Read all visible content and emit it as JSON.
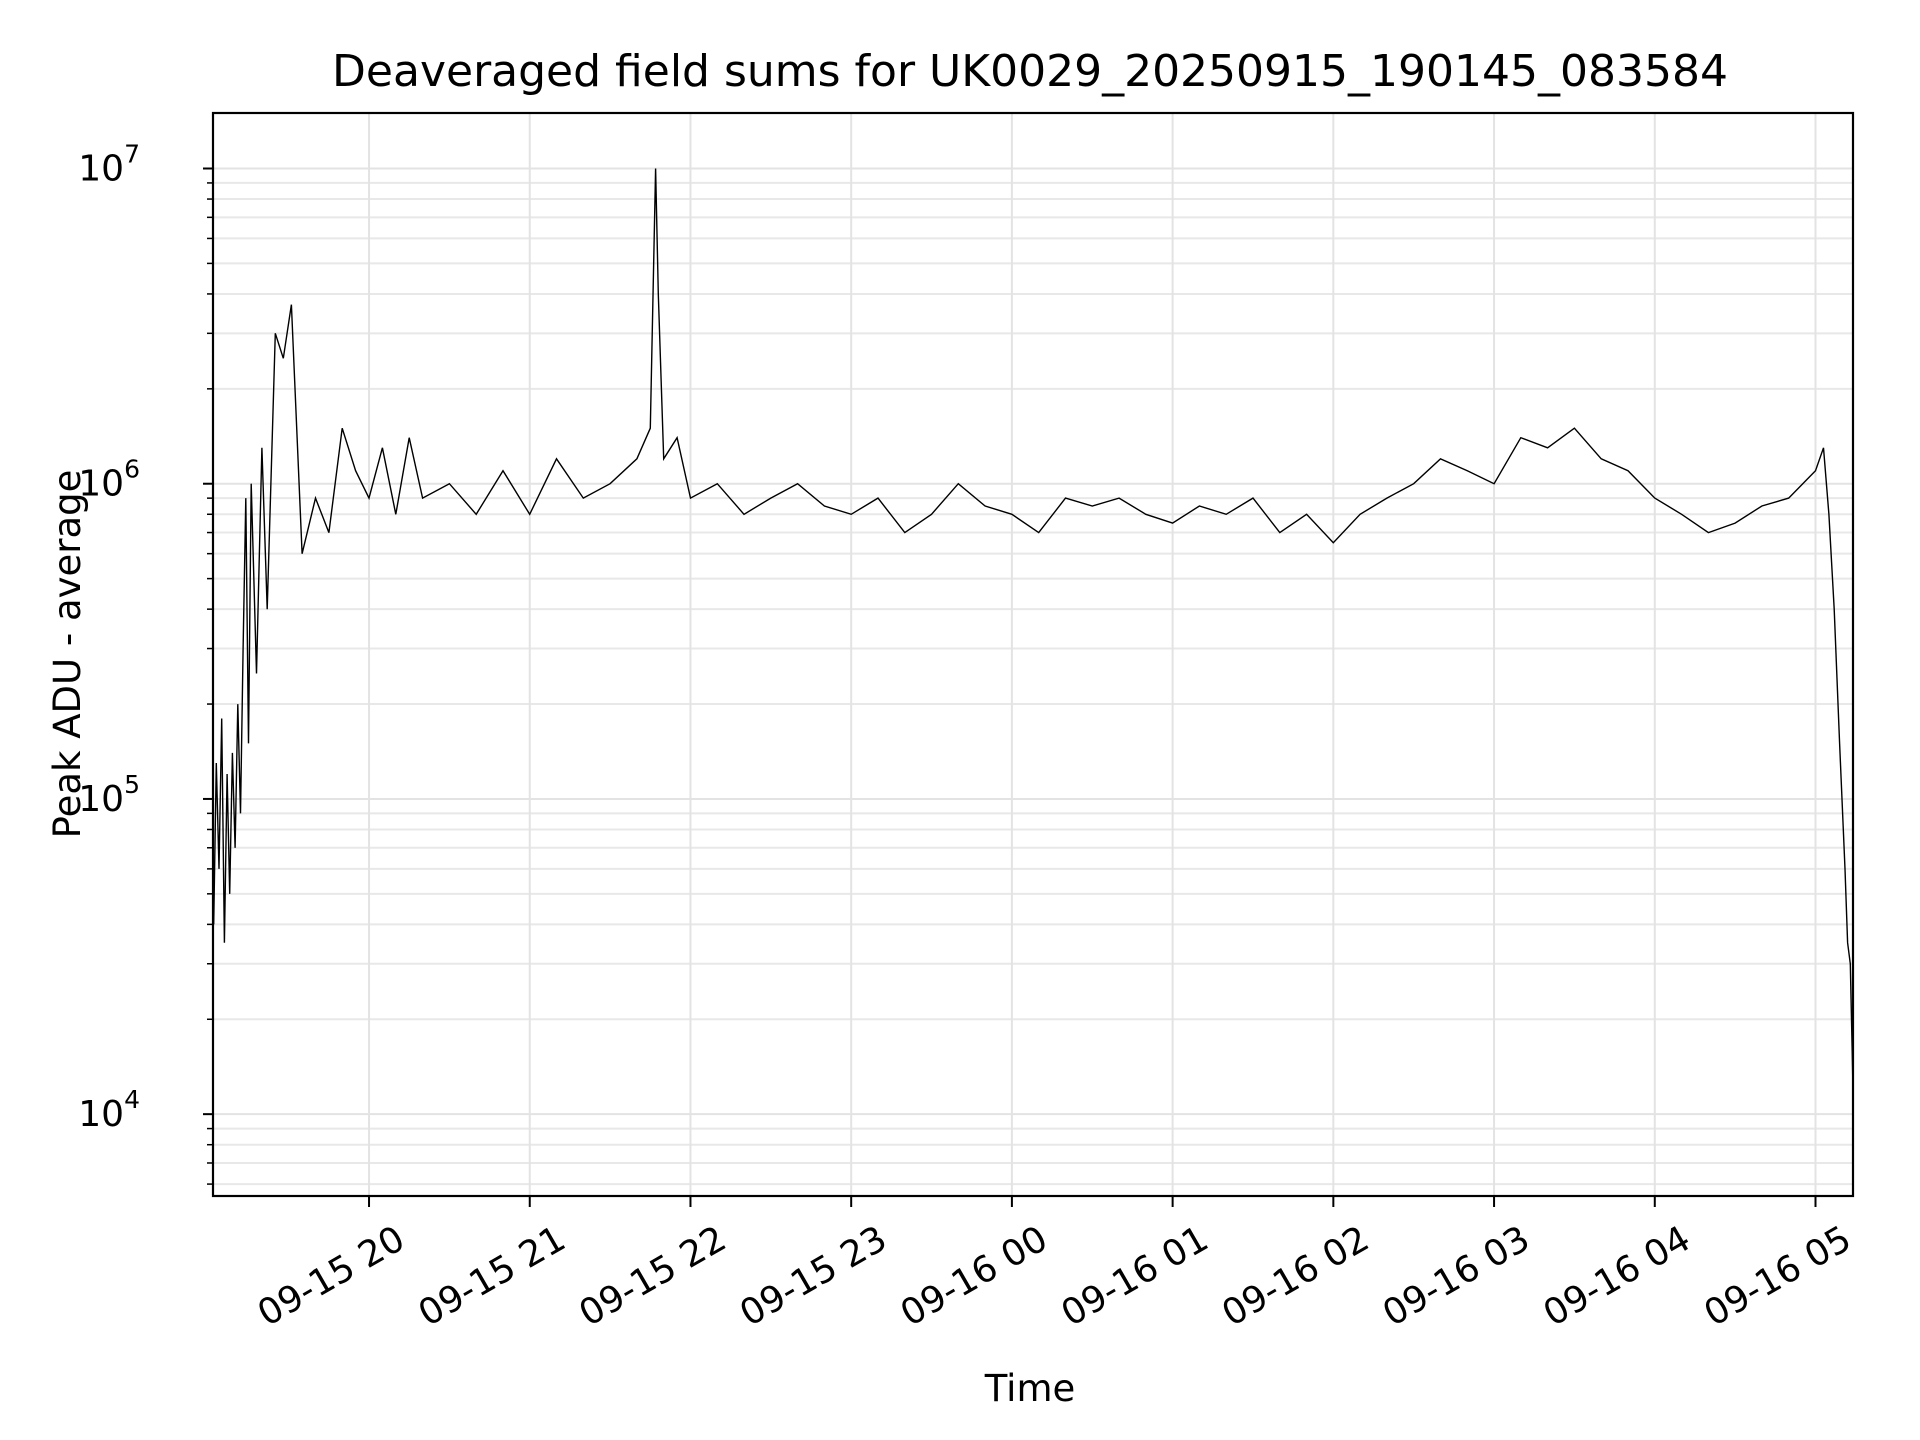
{
  "chart_data": {
    "type": "line",
    "title": "Deaveraged field sums for UK0029_20250915_190145_083584",
    "xlabel": "Time",
    "ylabel": "Peak ADU - average",
    "yscale": "log",
    "ylim": [
      5500,
      15000000
    ],
    "xlim": [
      "2025-09-15 19:01:45",
      "2025-09-16 05:14:00"
    ],
    "grid": true,
    "x_ticks": [
      {
        "value": "2025-09-15 20:00",
        "label": "09-15 20"
      },
      {
        "value": "2025-09-15 21:00",
        "label": "09-15 21"
      },
      {
        "value": "2025-09-15 22:00",
        "label": "09-15 22"
      },
      {
        "value": "2025-09-15 23:00",
        "label": "09-15 23"
      },
      {
        "value": "2025-09-16 00:00",
        "label": "09-16 00"
      },
      {
        "value": "2025-09-16 01:00",
        "label": "09-16 01"
      },
      {
        "value": "2025-09-16 02:00",
        "label": "09-16 02"
      },
      {
        "value": "2025-09-16 03:00",
        "label": "09-16 03"
      },
      {
        "value": "2025-09-16 04:00",
        "label": "09-16 04"
      },
      {
        "value": "2025-09-16 05:00",
        "label": "09-16 05"
      }
    ],
    "y_ticks": [
      {
        "value": 10000,
        "base": "10",
        "exp": "4"
      },
      {
        "value": 100000,
        "base": "10",
        "exp": "5"
      },
      {
        "value": 1000000,
        "base": "10",
        "exp": "6"
      },
      {
        "value": 10000000,
        "base": "10",
        "exp": "7"
      }
    ],
    "series": [
      {
        "color": "#000000",
        "x": [
          "2025-09-15 19:02",
          "2025-09-15 19:03",
          "2025-09-15 19:04",
          "2025-09-15 19:05",
          "2025-09-15 19:06",
          "2025-09-15 19:07",
          "2025-09-15 19:08",
          "2025-09-15 19:09",
          "2025-09-15 19:10",
          "2025-09-15 19:11",
          "2025-09-15 19:12",
          "2025-09-15 19:13",
          "2025-09-15 19:14",
          "2025-09-15 19:15",
          "2025-09-15 19:16",
          "2025-09-15 19:18",
          "2025-09-15 19:20",
          "2025-09-15 19:22",
          "2025-09-15 19:25",
          "2025-09-15 19:28",
          "2025-09-15 19:31",
          "2025-09-15 19:35",
          "2025-09-15 19:40",
          "2025-09-15 19:45",
          "2025-09-15 19:50",
          "2025-09-15 19:55",
          "2025-09-15 20:00",
          "2025-09-15 20:05",
          "2025-09-15 20:10",
          "2025-09-15 20:15",
          "2025-09-15 20:20",
          "2025-09-15 20:30",
          "2025-09-15 20:40",
          "2025-09-15 20:50",
          "2025-09-15 21:00",
          "2025-09-15 21:10",
          "2025-09-15 21:20",
          "2025-09-15 21:30",
          "2025-09-15 21:40",
          "2025-09-15 21:45",
          "2025-09-15 21:47",
          "2025-09-15 21:48",
          "2025-09-15 21:50",
          "2025-09-15 21:55",
          "2025-09-15 22:00",
          "2025-09-15 22:10",
          "2025-09-15 22:20",
          "2025-09-15 22:30",
          "2025-09-15 22:40",
          "2025-09-15 22:50",
          "2025-09-15 23:00",
          "2025-09-15 23:10",
          "2025-09-15 23:20",
          "2025-09-15 23:30",
          "2025-09-15 23:40",
          "2025-09-15 23:50",
          "2025-09-16 00:00",
          "2025-09-16 00:10",
          "2025-09-16 00:20",
          "2025-09-16 00:30",
          "2025-09-16 00:40",
          "2025-09-16 00:50",
          "2025-09-16 01:00",
          "2025-09-16 01:10",
          "2025-09-16 01:20",
          "2025-09-16 01:30",
          "2025-09-16 01:40",
          "2025-09-16 01:50",
          "2025-09-16 02:00",
          "2025-09-16 02:10",
          "2025-09-16 02:20",
          "2025-09-16 02:30",
          "2025-09-16 02:40",
          "2025-09-16 02:50",
          "2025-09-16 03:00",
          "2025-09-16 03:10",
          "2025-09-16 03:20",
          "2025-09-16 03:30",
          "2025-09-16 03:40",
          "2025-09-16 03:50",
          "2025-09-16 04:00",
          "2025-09-16 04:10",
          "2025-09-16 04:20",
          "2025-09-16 04:30",
          "2025-09-16 04:40",
          "2025-09-16 04:50",
          "2025-09-16 05:00",
          "2025-09-16 05:03",
          "2025-09-16 05:05",
          "2025-09-16 05:07",
          "2025-09-16 05:09",
          "2025-09-16 05:11",
          "2025-09-16 05:12",
          "2025-09-16 05:13",
          "2025-09-16 05:14"
        ],
        "values": [
          40000,
          130000,
          60000,
          180000,
          35000,
          120000,
          50000,
          140000,
          70000,
          200000,
          90000,
          300000,
          900000,
          150000,
          1000000,
          250000,
          1300000,
          400000,
          3000000,
          2500000,
          3700000,
          600000,
          900000,
          700000,
          1500000,
          1100000,
          900000,
          1300000,
          800000,
          1400000,
          900000,
          1000000,
          800000,
          1100000,
          800000,
          1200000,
          900000,
          1000000,
          1200000,
          1500000,
          10000000,
          4000000,
          1200000,
          1400000,
          900000,
          1000000,
          800000,
          900000,
          1000000,
          850000,
          800000,
          900000,
          700000,
          800000,
          1000000,
          850000,
          800000,
          700000,
          900000,
          850000,
          900000,
          800000,
          750000,
          850000,
          800000,
          900000,
          700000,
          800000,
          650000,
          800000,
          900000,
          1000000,
          1200000,
          1100000,
          1000000,
          1400000,
          1300000,
          1500000,
          1200000,
          1100000,
          900000,
          800000,
          700000,
          750000,
          850000,
          900000,
          1100000,
          1300000,
          800000,
          400000,
          150000,
          60000,
          35000,
          30000,
          12000
        ]
      }
    ]
  }
}
